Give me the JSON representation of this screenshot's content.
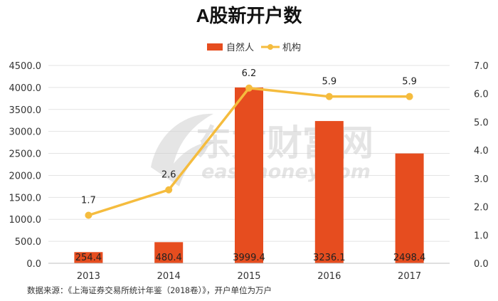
{
  "chart_data": {
    "type": "bar+line",
    "title": "A股新开户数",
    "categories": [
      "2013",
      "2014",
      "2015",
      "2016",
      "2017"
    ],
    "series": [
      {
        "name": "自然人",
        "type": "bar",
        "axis": "left",
        "color": "#e64d1f",
        "values": [
          254.4,
          480.4,
          3999.4,
          3236.1,
          2498.4
        ],
        "labels": [
          "254.4",
          "480.4",
          "3999.4",
          "3236.1",
          "2498.4"
        ]
      },
      {
        "name": "机构",
        "type": "line",
        "axis": "right",
        "color": "#f5bc3e",
        "values": [
          1.7,
          2.6,
          6.2,
          5.9,
          5.9
        ],
        "labels": [
          "1.7",
          "2.6",
          "6.2",
          "5.9",
          "5.9"
        ]
      }
    ],
    "y_left": {
      "min": 0,
      "max": 4500,
      "step": 500,
      "ticks": [
        "0.0",
        "500.0",
        "1000.0",
        "1500.0",
        "2000.0",
        "2500.0",
        "3000.0",
        "3500.0",
        "4000.0",
        "4500.0"
      ]
    },
    "y_right": {
      "min": 0,
      "max": 7,
      "step": 1,
      "ticks": [
        "0.0",
        "1.0",
        "2.0",
        "3.0",
        "4.0",
        "5.0",
        "6.0",
        "7.0"
      ]
    },
    "grid": true,
    "legend_position": "top-center"
  },
  "watermark": {
    "cn": "东方财富网",
    "en": "eastmoney.com"
  },
  "source_note": "数据来源：《上海证券交易所统计年鉴（2018卷）》，开户单位为万户"
}
